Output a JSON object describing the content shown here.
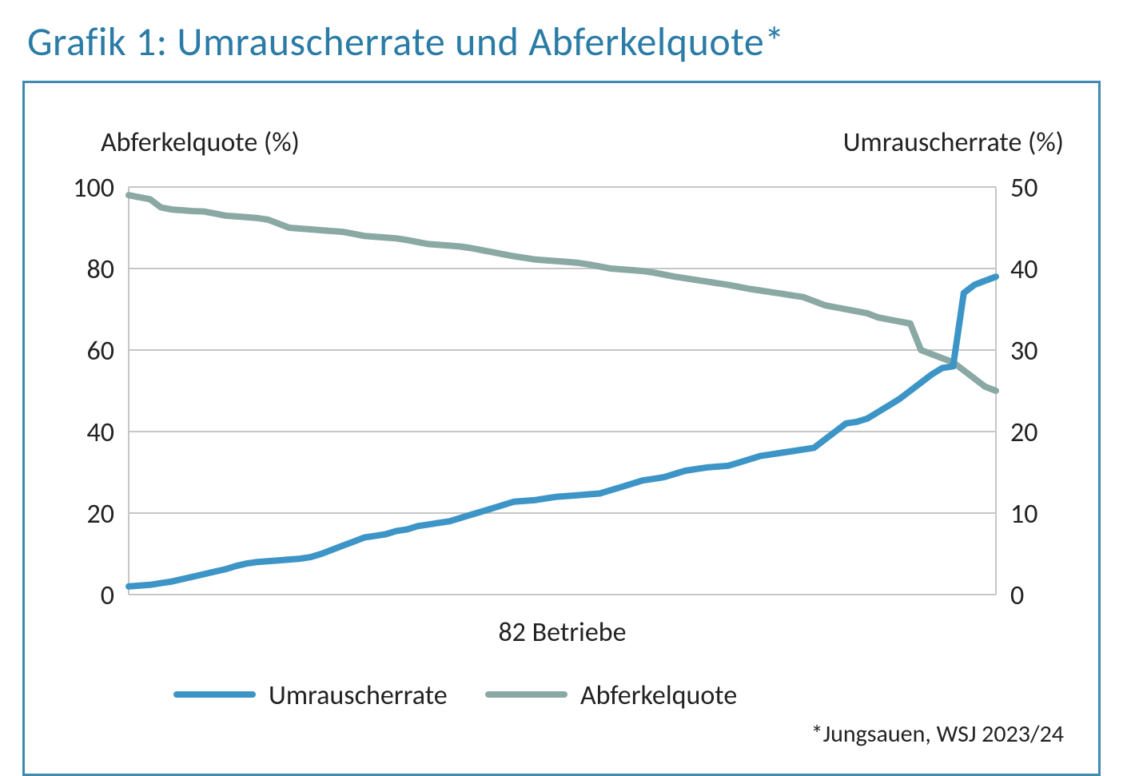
{
  "title": "Grafik 1: Umrauscherrate und Abferkelquote*",
  "chart": {
    "type": "line-dual-axis",
    "xlabel": "82 Betriebe",
    "left_axis": {
      "title": "Abferkelquote (%)",
      "ylim": [
        0,
        100
      ],
      "ticks": [
        0,
        20,
        40,
        60,
        80,
        100
      ]
    },
    "right_axis": {
      "title": "Umrauscherrate (%)",
      "ylim": [
        0,
        50
      ],
      "ticks": [
        0,
        10,
        20,
        30,
        40,
        50
      ]
    },
    "colors": {
      "umrauscherrate": "#3c95c6",
      "abferkelquote": "#8aa8a4",
      "grid": "#c6c6c6",
      "plot_border": "#c6c6c6",
      "frame_border": "#3f8bb0",
      "background": "#ffffff",
      "title_color": "#2a7ca6",
      "text_color": "#222222"
    },
    "line_width": 8,
    "n_points": 82,
    "series": {
      "umrauscherrate": {
        "axis": "right",
        "values": [
          1.0,
          1.1,
          1.2,
          1.4,
          1.6,
          1.9,
          2.2,
          2.5,
          2.8,
          3.1,
          3.5,
          3.8,
          4.0,
          4.1,
          4.2,
          4.3,
          4.4,
          4.6,
          5.0,
          5.5,
          6.0,
          6.5,
          7.0,
          7.2,
          7.4,
          7.8,
          8.0,
          8.4,
          8.6,
          8.8,
          9.0,
          9.4,
          9.8,
          10.2,
          10.6,
          11.0,
          11.4,
          11.5,
          11.6,
          11.8,
          12.0,
          12.1,
          12.2,
          12.3,
          12.4,
          12.8,
          13.2,
          13.6,
          14.0,
          14.2,
          14.4,
          14.8,
          15.2,
          15.4,
          15.6,
          15.7,
          15.8,
          16.2,
          16.6,
          17.0,
          17.2,
          17.4,
          17.6,
          17.8,
          18.0,
          19.0,
          20.0,
          21.0,
          21.2,
          21.6,
          22.4,
          23.2,
          24.0,
          25.0,
          26.0,
          27.0,
          27.8,
          28.0,
          37.0,
          38.0,
          38.5,
          39.0
        ]
      },
      "abferkelquote": {
        "axis": "left",
        "values": [
          98,
          97.5,
          97,
          95,
          94.5,
          94.3,
          94.1,
          94,
          93.5,
          93,
          92.8,
          92.6,
          92.4,
          92,
          91,
          90,
          89.8,
          89.6,
          89.4,
          89.2,
          89,
          88.5,
          88,
          87.8,
          87.6,
          87.4,
          87,
          86.5,
          86,
          85.8,
          85.6,
          85.4,
          85,
          84.5,
          84,
          83.5,
          83,
          82.6,
          82.2,
          82,
          81.8,
          81.6,
          81.4,
          81,
          80.5,
          80,
          79.8,
          79.6,
          79.4,
          79,
          78.5,
          78,
          77.6,
          77.2,
          76.8,
          76.4,
          76,
          75.5,
          75,
          74.6,
          74.2,
          73.8,
          73.4,
          73,
          72,
          71,
          70.5,
          70,
          69.5,
          69,
          68,
          67.5,
          67,
          66.5,
          60,
          59,
          58,
          57,
          55,
          53,
          51,
          50
        ]
      }
    },
    "legend": {
      "items": [
        {
          "key": "umrauscherrate",
          "label": "Umrauscherrate"
        },
        {
          "key": "abferkelquote",
          "label": "Abferkelquote"
        }
      ]
    },
    "footnote": "*Jungsauen, WSJ 2023/24"
  }
}
